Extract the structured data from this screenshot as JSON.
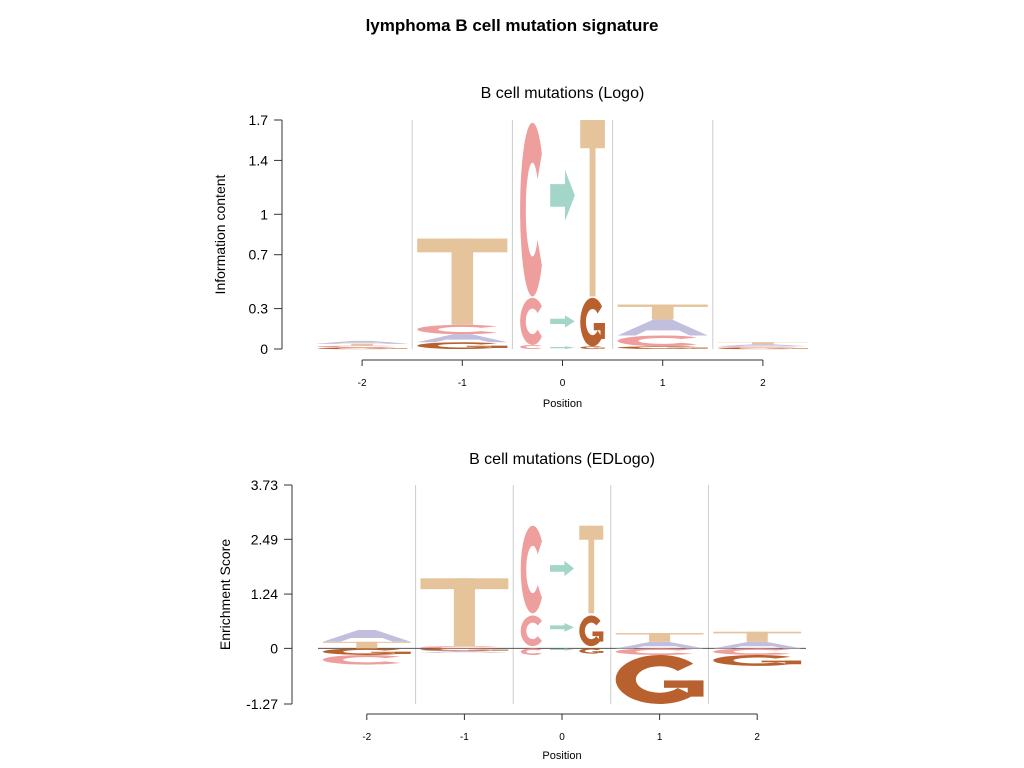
{
  "page": {
    "title": "lymphoma B cell mutation signature"
  },
  "colors": {
    "A": "#c2bedd",
    "C": "#ee9e9c",
    "G": "#b8612e",
    "T": "#e5c49b",
    "C>T": "#e5c49b",
    "C>G": "#b8612e",
    "C>A": "#a3d6c9"
  },
  "chart_data": [
    {
      "type": "logo",
      "title": "B cell mutations (Logo)",
      "xlabel": "Position",
      "ylabel": "Information content",
      "ylim": [
        0,
        1.7
      ],
      "y_ticks": [
        "0",
        "0.3",
        "0.7",
        "1",
        "1.4",
        "1.7"
      ],
      "y_tick_values": [
        0,
        0.3,
        0.7,
        1.0,
        1.4,
        1.7
      ],
      "x_ticks": [
        "-2",
        "-1",
        "0",
        "1",
        "2"
      ],
      "positions": [
        {
          "label": "-2",
          "columns": [
            {
              "stack": [
                {
                  "letter": "G",
                  "from": 0,
                  "to": 0.01
                },
                {
                  "letter": "C",
                  "from": 0.01,
                  "to": 0.025
                },
                {
                  "letter": "T",
                  "from": 0.025,
                  "to": 0.04
                },
                {
                  "letter": "A",
                  "from": 0.04,
                  "to": 0.06
                }
              ]
            }
          ]
        },
        {
          "label": "-1",
          "columns": [
            {
              "stack": [
                {
                  "letter": "G",
                  "from": 0,
                  "to": 0.05
                },
                {
                  "letter": "A",
                  "from": 0.05,
                  "to": 0.11
                },
                {
                  "letter": "C",
                  "from": 0.11,
                  "to": 0.18
                },
                {
                  "letter": "T",
                  "from": 0.18,
                  "to": 0.82
                }
              ]
            }
          ]
        },
        {
          "label": "0",
          "columns": [
            {
              "stack": [
                {
                  "letter": "C",
                  "from": 0,
                  "to": 0.03
                },
                {
                  "letter": "C",
                  "from": 0.03,
                  "to": 0.38
                },
                {
                  "letter": "C",
                  "from": 0.39,
                  "to": 1.68
                }
              ]
            },
            {
              "stack": [
                {
                  "letter": "C>A",
                  "from": 0,
                  "to": 0.02
                },
                {
                  "letter": "C>A",
                  "from": 0.16,
                  "to": 0.25
                },
                {
                  "letter": "C>A",
                  "from": 0.95,
                  "to": 1.33
                }
              ]
            },
            {
              "stack": [
                {
                  "letter": "C>G",
                  "from": 0,
                  "to": 0.02
                },
                {
                  "letter": "C>G",
                  "from": 0.02,
                  "to": 0.38
                },
                {
                  "letter": "C>T",
                  "from": 0.39,
                  "to": 1.7
                }
              ]
            }
          ]
        },
        {
          "label": "1",
          "columns": [
            {
              "stack": [
                {
                  "letter": "G",
                  "from": 0,
                  "to": 0.02
                },
                {
                  "letter": "C",
                  "from": 0.02,
                  "to": 0.1
                },
                {
                  "letter": "A",
                  "from": 0.1,
                  "to": 0.22
                },
                {
                  "letter": "T",
                  "from": 0.22,
                  "to": 0.33
                }
              ]
            }
          ]
        },
        {
          "label": "2",
          "columns": [
            {
              "stack": [
                {
                  "letter": "G",
                  "from": 0,
                  "to": 0.01
                },
                {
                  "letter": "C",
                  "from": 0.01,
                  "to": 0.02
                },
                {
                  "letter": "A",
                  "from": 0.02,
                  "to": 0.035
                },
                {
                  "letter": "T",
                  "from": 0.035,
                  "to": 0.05
                }
              ]
            }
          ]
        }
      ]
    },
    {
      "type": "logo",
      "title": "B cell mutations (EDLogo)",
      "xlabel": "Position",
      "ylabel": "Enrichment Score",
      "ylim": [
        -1.27,
        3.73
      ],
      "y_ticks": [
        "-1.27",
        "0",
        "1.24",
        "2.49",
        "3.73"
      ],
      "y_tick_values": [
        -1.27,
        0,
        1.24,
        2.49,
        3.73
      ],
      "x_ticks": [
        "-2",
        "-1",
        "0",
        "1",
        "2"
      ],
      "positions": [
        {
          "label": "-2",
          "columns": [
            {
              "stack": [
                {
                  "letter": "T",
                  "from": 0,
                  "to": 0.15
                },
                {
                  "letter": "A",
                  "from": 0.15,
                  "to": 0.42
                },
                {
                  "letter": "G",
                  "from": -0.15,
                  "to": 0
                },
                {
                  "letter": "C",
                  "from": -0.37,
                  "to": -0.15
                }
              ]
            }
          ]
        },
        {
          "label": "-1",
          "columns": [
            {
              "stack": [
                {
                  "letter": "C",
                  "from": 0,
                  "to": 0.05
                },
                {
                  "letter": "T",
                  "from": 0.05,
                  "to": 1.6
                },
                {
                  "letter": "G",
                  "from": -0.06,
                  "to": 0
                },
                {
                  "letter": "A",
                  "from": -0.1,
                  "to": -0.06
                }
              ]
            }
          ]
        },
        {
          "label": "0",
          "columns": [
            {
              "stack": [
                {
                  "letter": "C",
                  "from": 0.05,
                  "to": 0.75
                },
                {
                  "letter": "C",
                  "from": 0.8,
                  "to": 2.8
                },
                {
                  "letter": "C",
                  "from": -0.15,
                  "to": 0
                }
              ]
            },
            {
              "stack": [
                {
                  "letter": "C>A",
                  "from": 0.38,
                  "to": 0.58
                },
                {
                  "letter": "C>A",
                  "from": 1.65,
                  "to": 2.0
                },
                {
                  "letter": "C>A",
                  "from": -0.05,
                  "to": 0
                }
              ]
            },
            {
              "stack": [
                {
                  "letter": "C>G",
                  "from": 0.05,
                  "to": 0.75
                },
                {
                  "letter": "C>T",
                  "from": 0.8,
                  "to": 2.8
                },
                {
                  "letter": "C>G",
                  "from": -0.12,
                  "to": 0
                }
              ]
            }
          ]
        },
        {
          "label": "1",
          "columns": [
            {
              "stack": [
                {
                  "letter": "A",
                  "from": 0,
                  "to": 0.15
                },
                {
                  "letter": "T",
                  "from": 0.15,
                  "to": 0.35
                },
                {
                  "letter": "C",
                  "from": -0.15,
                  "to": 0
                },
                {
                  "letter": "G",
                  "from": -1.27,
                  "to": -0.15
                }
              ]
            }
          ]
        },
        {
          "label": "2",
          "columns": [
            {
              "stack": [
                {
                  "letter": "A",
                  "from": 0,
                  "to": 0.15
                },
                {
                  "letter": "T",
                  "from": 0.15,
                  "to": 0.38
                },
                {
                  "letter": "C",
                  "from": -0.15,
                  "to": 0
                },
                {
                  "letter": "G",
                  "from": -0.4,
                  "to": -0.15
                }
              ]
            }
          ]
        }
      ]
    }
  ]
}
